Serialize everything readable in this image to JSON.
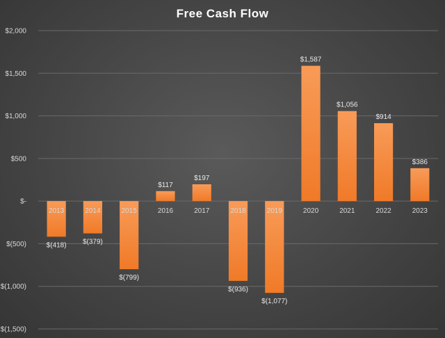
{
  "chart_data": {
    "type": "bar",
    "title": "Free Cash Flow",
    "xlabel": "",
    "ylabel": "",
    "categories": [
      "2013",
      "2014",
      "2015",
      "2016",
      "2017",
      "2018",
      "2019",
      "2020",
      "2021",
      "2022",
      "2023"
    ],
    "values": [
      -418,
      -379,
      -799,
      117,
      197,
      -936,
      -1077,
      1587,
      1056,
      914,
      386
    ],
    "data_labels": [
      "$(418)",
      "$(379)",
      "$(799)",
      "$117",
      "$197",
      "$(936)",
      "$(1,077)",
      "$1,587",
      "$1,056",
      "$914",
      "$386"
    ],
    "ylim": [
      -1500,
      2000
    ],
    "yticks": [
      2000,
      1500,
      1000,
      500,
      0,
      -500,
      -1000,
      -1500
    ],
    "ytick_labels": [
      "$2,000",
      "$1,500",
      "$1,000",
      "$500",
      "$-",
      "$(500)",
      "$(1,000)",
      "$(1,500)"
    ],
    "grid": true,
    "legend": "none",
    "bar_color": "#f47f30",
    "bar_color_light": "#f79a55"
  }
}
